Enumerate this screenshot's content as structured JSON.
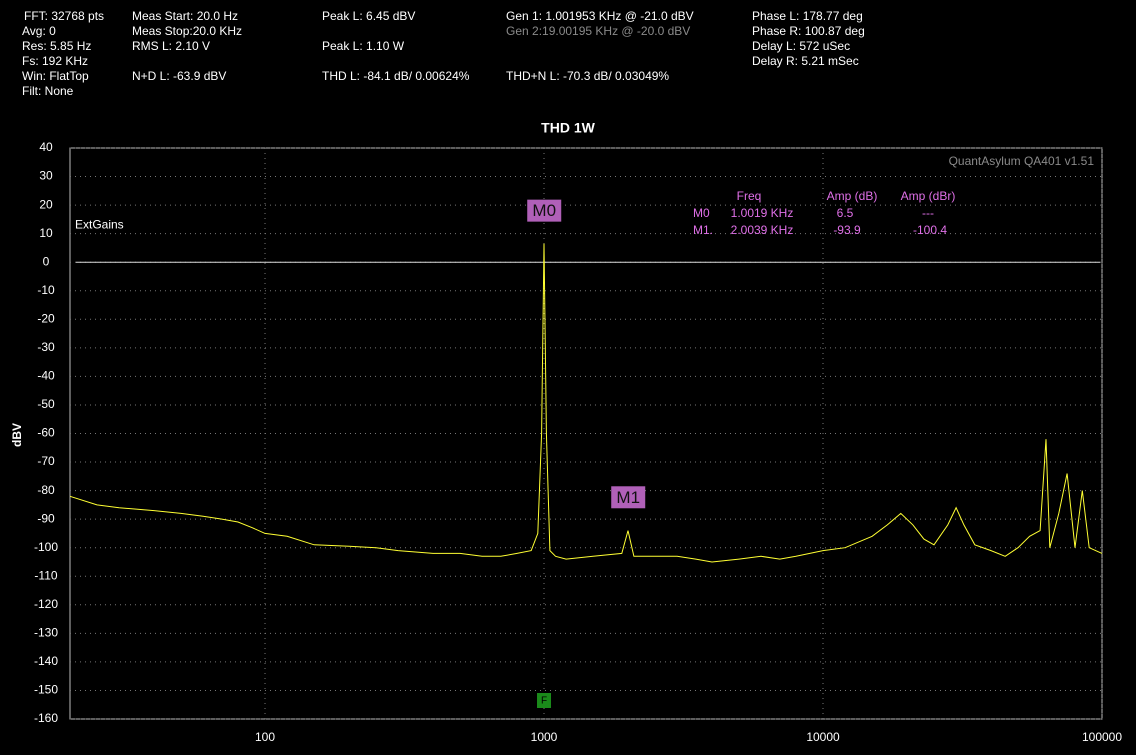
{
  "header": {
    "col1": [
      "FFT: 32768 pts",
      "Avg: 0",
      "Res: 5.85 Hz",
      "Fs: 192 KHz",
      "Win: FlatTop",
      "Filt: None"
    ],
    "col2": [
      "Meas Start: 20.0 Hz",
      "Meas Stop:20.0 KHz",
      "RMS L: 2.10 V",
      "N+D L: -63.9 dBV"
    ],
    "col3": [
      "Peak L: 6.45 dBV",
      "Peak L: 1.10 W",
      "THD L: -84.1 dB/ 0.00624%"
    ],
    "col4": [
      "Gen 1: 1.001953 KHz @ -21.0  dBV",
      "Gen 2:19.00195 KHz @ -20.0  dBV",
      "THD+N L: -70.3 dB/ 0.03049%"
    ],
    "col5": [
      "Phase L: 178.77 deg",
      "Phase R: 100.87 deg",
      "Delay L: 572 uSec",
      "Delay R: 5.21 mSec"
    ]
  },
  "chart_data": {
    "type": "line",
    "title": "THD 1W",
    "y_label": "dBV",
    "watermark": "QuantAsylum QA401 v1.51",
    "x_log": true,
    "xlim": [
      20,
      100000
    ],
    "ylim": [
      -160,
      40
    ],
    "xticks": [
      100,
      1000,
      10000,
      100000
    ],
    "yticks": [
      -160,
      -150,
      -140,
      -130,
      -120,
      -110,
      -100,
      -90,
      -80,
      -70,
      -60,
      -50,
      -40,
      -30,
      -20,
      -10,
      0,
      10,
      20,
      30,
      40
    ],
    "grid": true,
    "reference_line": {
      "label": "ExtGains",
      "value": 0
    },
    "series": [
      {
        "name": "L",
        "color": "#ffff33",
        "x": [
          20,
          25,
          30,
          40,
          50,
          60,
          70,
          80,
          90,
          100,
          120,
          150,
          200,
          250,
          300,
          400,
          500,
          600,
          700,
          800,
          900,
          950,
          980,
          1000,
          1020,
          1050,
          1100,
          1200,
          1500,
          1900,
          2000,
          2100,
          2500,
          3000,
          3500,
          4000,
          5000,
          6000,
          7000,
          8000,
          10000,
          12000,
          15000,
          17000,
          19000,
          21000,
          23000,
          25000,
          28000,
          30000,
          32000,
          35000,
          40000,
          45000,
          50000,
          55000,
          60000,
          63000,
          65000,
          70000,
          75000,
          80000,
          85000,
          90000,
          100000
        ],
        "values": [
          -82,
          -85,
          -86,
          -87,
          -88,
          -89,
          -90,
          -91,
          -93,
          -95,
          -96,
          -99,
          -99.5,
          -100,
          -101,
          -102,
          -102,
          -103,
          -103,
          -102,
          -101,
          -95,
          -60,
          6.5,
          -60,
          -101,
          -103,
          -104,
          -103,
          -102,
          -94,
          -103,
          -103,
          -103,
          -104,
          -105,
          -104,
          -103,
          -104,
          -103,
          -101,
          -100,
          -96,
          -92,
          -88,
          -92,
          -97,
          -99,
          -92,
          -86,
          -92,
          -99,
          -101,
          -103,
          -100,
          -96,
          -94,
          -62,
          -100,
          -88,
          -74,
          -100,
          -80,
          -100,
          -102
        ]
      }
    ],
    "markers": [
      {
        "label": "M0",
        "x": 1001.9,
        "y": 6.5
      },
      {
        "label": "M1",
        "x": 2003.9,
        "y": -93.9
      }
    ],
    "fundamental_marker": {
      "label": "F",
      "x": 1000
    },
    "marker_table": {
      "columns": [
        "Freq",
        "Amp (dB)",
        "Amp (dBr)"
      ],
      "rows": [
        [
          "M0",
          "1.0019 KHz",
          "6.5",
          "---"
        ],
        [
          "M1.",
          "2.0039 KHz",
          "-93.9",
          "-100.4"
        ]
      ]
    }
  }
}
